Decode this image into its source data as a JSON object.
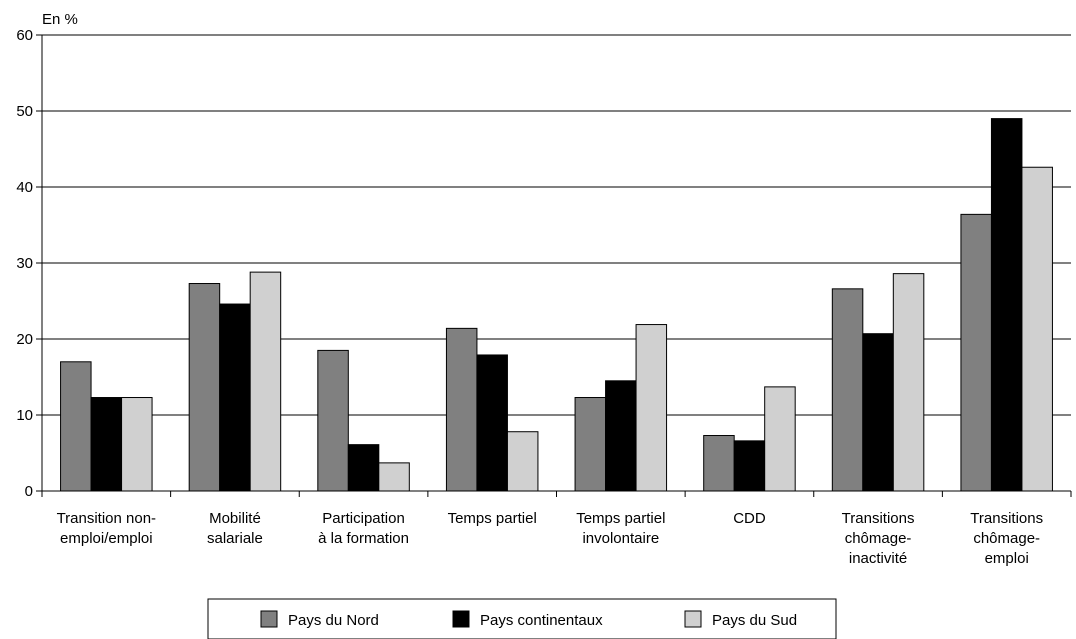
{
  "chart_data": {
    "type": "bar",
    "ylabel": "En %",
    "ylim": [
      0,
      60
    ],
    "yticks": [
      0,
      10,
      20,
      30,
      40,
      50,
      60
    ],
    "grid": true,
    "legend_position": "bottom",
    "categories": [
      [
        "Transition non-",
        "emploi/emploi"
      ],
      [
        "Mobilité",
        "salariale"
      ],
      [
        "Participation",
        "à la formation"
      ],
      [
        "Temps partiel"
      ],
      [
        "Temps partiel",
        "involontaire"
      ],
      [
        "CDD"
      ],
      [
        "Transitions",
        "chômage-",
        "inactivité"
      ],
      [
        "Transitions",
        "chômage-",
        "emploi"
      ]
    ],
    "series": [
      {
        "name": "Pays du Nord",
        "color": "#808080",
        "values": [
          17,
          27.3,
          18.5,
          21.4,
          12.3,
          7.3,
          26.6,
          36.4
        ]
      },
      {
        "name": "Pays continentaux",
        "color": "#000000",
        "values": [
          12.3,
          24.6,
          6.1,
          17.9,
          14.5,
          6.6,
          20.7,
          49
        ]
      },
      {
        "name": "Pays du Sud",
        "color": "#d0d0d0",
        "values": [
          12.3,
          28.8,
          3.7,
          7.8,
          21.9,
          13.7,
          28.6,
          42.6
        ]
      }
    ]
  }
}
